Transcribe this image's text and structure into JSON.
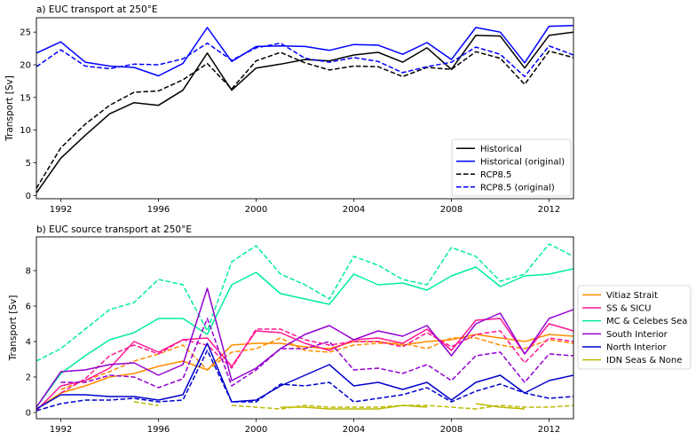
{
  "chart_data": [
    {
      "type": "line",
      "title": "a) EUC transport at 250°E",
      "xlabel": "",
      "ylabel": "Transport [Sv]",
      "xlim": [
        1991,
        2013
      ],
      "ylim": [
        -0.5,
        27.2
      ],
      "xticks": [
        1992,
        1996,
        2000,
        2004,
        2008,
        2012
      ],
      "yticks": [
        0,
        5,
        10,
        15,
        20,
        25
      ],
      "grid": false,
      "legend_position": "lower right",
      "x": [
        1991,
        1992,
        1993,
        1994,
        1995,
        1996,
        1997,
        1998,
        1999,
        2000,
        2001,
        2002,
        2003,
        2004,
        2005,
        2006,
        2007,
        2008,
        2009,
        2010,
        2011,
        2012,
        2013
      ],
      "series": [
        {
          "name": "Historical",
          "color": "#000000",
          "dash": "solid",
          "values": [
            0.4,
            5.7,
            9.2,
            12.5,
            14.2,
            13.8,
            16.1,
            21.8,
            16.1,
            19.5,
            20.1,
            20.8,
            20.6,
            21.5,
            21.9,
            20.4,
            22.6,
            19.3,
            24.5,
            24.4,
            19.5,
            24.5,
            25.0
          ]
        },
        {
          "name": "Historical (original)",
          "color": "#0000ff",
          "dash": "solid",
          "values": [
            21.8,
            23.5,
            20.4,
            19.8,
            19.6,
            18.3,
            20.2,
            25.7,
            20.5,
            22.8,
            22.9,
            22.8,
            22.2,
            23.1,
            23.0,
            21.6,
            23.4,
            20.8,
            25.7,
            25.0,
            20.3,
            25.9,
            26.0
          ]
        },
        {
          "name": "RCP8.5",
          "color": "#000000",
          "dash": "dashed",
          "values": [
            1.1,
            7.3,
            10.9,
            13.8,
            15.8,
            16.0,
            17.7,
            20.2,
            16.3,
            20.6,
            21.9,
            20.3,
            19.2,
            19.8,
            19.7,
            18.2,
            19.6,
            19.3,
            22.0,
            21.0,
            17.0,
            22.1,
            21.1
          ]
        },
        {
          "name": "RCP8.5 (original)",
          "color": "#0000ff",
          "dash": "dashed",
          "values": [
            19.7,
            22.3,
            19.8,
            19.4,
            20.1,
            20.0,
            20.9,
            23.3,
            20.7,
            22.6,
            23.3,
            21.0,
            20.4,
            21.1,
            20.5,
            18.8,
            19.7,
            20.4,
            22.7,
            21.6,
            18.2,
            22.9,
            21.5
          ]
        }
      ]
    },
    {
      "type": "line",
      "title": "b) EUC source transport at 250°E",
      "xlabel": "",
      "ylabel": "Transport [Sv]",
      "xlim": [
        1991,
        2013
      ],
      "ylim": [
        -0.35,
        9.9
      ],
      "xticks": [
        1992,
        1996,
        2000,
        2004,
        2008,
        2012
      ],
      "yticks": [
        0,
        2,
        4,
        6,
        8
      ],
      "grid": false,
      "legend_position": "outside right",
      "x": [
        1991,
        1992,
        1993,
        1994,
        1995,
        1996,
        1997,
        1998,
        1999,
        2000,
        2001,
        2002,
        2003,
        2004,
        2005,
        2006,
        2007,
        2008,
        2009,
        2010,
        2011,
        2012,
        2013
      ],
      "series": [
        {
          "name": "Vitiaz Strait",
          "color": "#ff8c00",
          "solid": [
            0.2,
            1.1,
            1.5,
            2.0,
            2.2,
            2.6,
            2.9,
            2.4,
            3.8,
            3.9,
            3.9,
            3.7,
            3.6,
            4.0,
            4.0,
            3.8,
            4.0,
            4.1,
            4.4,
            4.2,
            4.0,
            4.4,
            4.3
          ],
          "dashed": [
            null,
            1.3,
            1.8,
            2.3,
            2.9,
            3.3,
            3.8,
            2.4,
            3.4,
            3.6,
            4.2,
            3.5,
            3.4,
            3.8,
            3.9,
            3.9,
            3.6,
            4.2,
            4.2,
            3.8,
            3.6,
            4.1,
            3.9
          ]
        },
        {
          "name": "SS & SICU",
          "color": "#ff1493",
          "solid": [
            0.1,
            1.5,
            1.8,
            2.5,
            4.0,
            3.4,
            4.1,
            4.2,
            2.6,
            4.6,
            4.5,
            3.9,
            3.5,
            4.1,
            4.2,
            3.9,
            4.7,
            3.5,
            5.2,
            5.3,
            3.3,
            5.0,
            4.6
          ],
          "dashed": [
            null,
            1.1,
            1.9,
            3.2,
            3.8,
            3.3,
            4.1,
            3.8,
            2.5,
            4.7,
            4.7,
            4.1,
            3.8,
            4.0,
            4.0,
            3.7,
            4.5,
            3.7,
            4.4,
            4.6,
            2.8,
            4.2,
            4.0
          ]
        },
        {
          "name": "MC & Celebes Sea",
          "color": "#00ee99",
          "solid": [
            0.3,
            2.2,
            3.2,
            4.1,
            4.5,
            5.3,
            5.3,
            4.4,
            7.2,
            7.9,
            6.7,
            6.4,
            6.1,
            7.8,
            7.2,
            7.3,
            6.9,
            7.7,
            8.2,
            7.1,
            7.7,
            7.8,
            8.1
          ],
          "dashed": [
            2.9,
            3.6,
            4.7,
            5.8,
            6.2,
            7.5,
            7.2,
            4.6,
            8.5,
            9.4,
            7.8,
            7.2,
            6.4,
            8.8,
            8.3,
            7.5,
            7.2,
            9.3,
            8.8,
            7.4,
            7.8,
            9.5,
            8.8
          ]
        },
        {
          "name": "South Interior",
          "color": "#9400d3",
          "solid": [
            0.3,
            2.3,
            2.4,
            2.7,
            2.8,
            2.1,
            2.7,
            7.0,
            1.8,
            2.5,
            3.6,
            4.4,
            4.9,
            4.1,
            4.6,
            4.3,
            4.9,
            3.2,
            5.0,
            5.6,
            3.3,
            5.3,
            5.8
          ],
          "dashed": [
            null,
            1.7,
            1.7,
            2.1,
            2.0,
            1.4,
            1.9,
            5.3,
            1.5,
            2.4,
            3.6,
            3.6,
            4.0,
            2.4,
            2.5,
            2.2,
            2.7,
            1.8,
            3.2,
            3.4,
            1.7,
            3.3,
            3.2
          ]
        },
        {
          "name": "North Interior",
          "color": "#0000cd",
          "solid": [
            0.2,
            1.0,
            1.0,
            0.9,
            0.9,
            0.7,
            1.0,
            3.9,
            0.6,
            0.7,
            1.5,
            2.1,
            2.7,
            1.5,
            1.7,
            1.3,
            1.7,
            0.7,
            1.7,
            2.1,
            1.1,
            1.8,
            2.1
          ],
          "dashed": [
            0.1,
            0.5,
            0.7,
            0.7,
            0.8,
            0.6,
            0.7,
            3.5,
            0.6,
            0.6,
            1.6,
            1.5,
            1.7,
            0.6,
            0.8,
            1.0,
            1.4,
            0.6,
            1.2,
            1.6,
            1.1,
            0.8,
            0.9
          ]
        },
        {
          "name": "IDN Seas & None",
          "color": "#bbbb00",
          "solid": [
            null,
            null,
            null,
            null,
            null,
            null,
            null,
            null,
            null,
            null,
            0.3,
            0.3,
            0.2,
            0.2,
            0.2,
            0.4,
            0.3,
            null,
            0.5,
            0.3,
            0.2,
            null,
            null
          ],
          "dashed": [
            null,
            null,
            null,
            null,
            0.6,
            0.4,
            null,
            null,
            0.4,
            0.3,
            0.2,
            0.4,
            0.3,
            0.3,
            0.3,
            0.4,
            0.4,
            0.3,
            0.2,
            0.4,
            0.3,
            0.3,
            0.4
          ]
        }
      ]
    }
  ]
}
